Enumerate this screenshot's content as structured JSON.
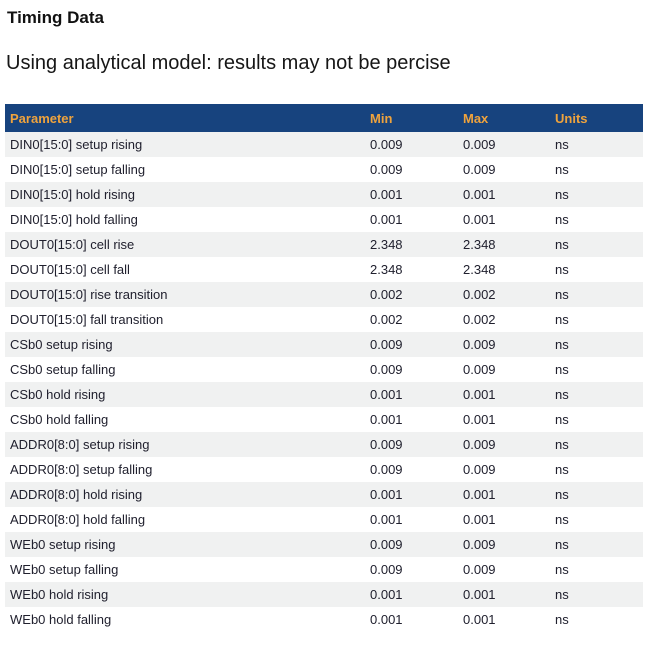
{
  "page": {
    "title": "Timing Data",
    "subtitle": "Using analytical model: results may not be percise"
  },
  "colors": {
    "header_bg": "#17437e",
    "header_text": "#efa33d",
    "row_alt_bg": "#f0f1f1",
    "row_text": "#20202e"
  },
  "table": {
    "columns": [
      "Parameter",
      "Min",
      "Max",
      "Units"
    ],
    "rows": [
      {
        "parameter": "DIN0[15:0] setup rising",
        "min": "0.009",
        "max": "0.009",
        "units": "ns"
      },
      {
        "parameter": "DIN0[15:0] setup falling",
        "min": "0.009",
        "max": "0.009",
        "units": "ns"
      },
      {
        "parameter": "DIN0[15:0] hold rising",
        "min": "0.001",
        "max": "0.001",
        "units": "ns"
      },
      {
        "parameter": "DIN0[15:0] hold falling",
        "min": "0.001",
        "max": "0.001",
        "units": "ns"
      },
      {
        "parameter": "DOUT0[15:0] cell rise",
        "min": "2.348",
        "max": "2.348",
        "units": "ns"
      },
      {
        "parameter": "DOUT0[15:0] cell fall",
        "min": "2.348",
        "max": "2.348",
        "units": "ns"
      },
      {
        "parameter": "DOUT0[15:0] rise transition",
        "min": "0.002",
        "max": "0.002",
        "units": "ns"
      },
      {
        "parameter": "DOUT0[15:0] fall transition",
        "min": "0.002",
        "max": "0.002",
        "units": "ns"
      },
      {
        "parameter": "CSb0 setup rising",
        "min": "0.009",
        "max": "0.009",
        "units": "ns"
      },
      {
        "parameter": "CSb0 setup falling",
        "min": "0.009",
        "max": "0.009",
        "units": "ns"
      },
      {
        "parameter": "CSb0 hold rising",
        "min": "0.001",
        "max": "0.001",
        "units": "ns"
      },
      {
        "parameter": "CSb0 hold falling",
        "min": "0.001",
        "max": "0.001",
        "units": "ns"
      },
      {
        "parameter": "ADDR0[8:0] setup rising",
        "min": "0.009",
        "max": "0.009",
        "units": "ns"
      },
      {
        "parameter": "ADDR0[8:0] setup falling",
        "min": "0.009",
        "max": "0.009",
        "units": "ns"
      },
      {
        "parameter": "ADDR0[8:0] hold rising",
        "min": "0.001",
        "max": "0.001",
        "units": "ns"
      },
      {
        "parameter": "ADDR0[8:0] hold falling",
        "min": "0.001",
        "max": "0.001",
        "units": "ns"
      },
      {
        "parameter": "WEb0 setup rising",
        "min": "0.009",
        "max": "0.009",
        "units": "ns"
      },
      {
        "parameter": "WEb0 setup falling",
        "min": "0.009",
        "max": "0.009",
        "units": "ns"
      },
      {
        "parameter": "WEb0 hold rising",
        "min": "0.001",
        "max": "0.001",
        "units": "ns"
      },
      {
        "parameter": "WEb0 hold falling",
        "min": "0.001",
        "max": "0.001",
        "units": "ns"
      }
    ]
  }
}
